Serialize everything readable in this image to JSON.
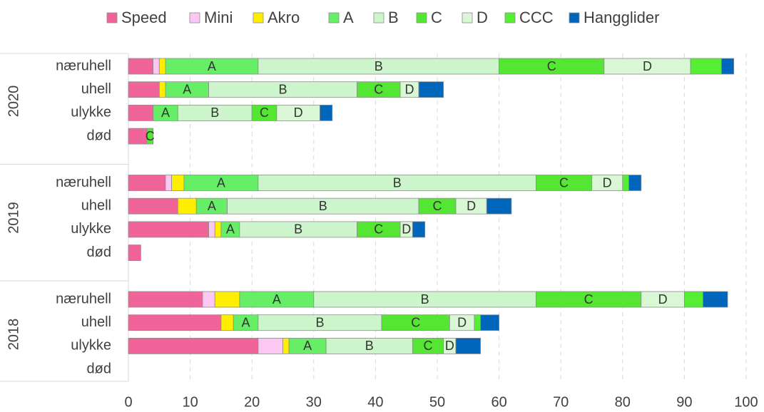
{
  "chart_data": {
    "type": "stacked-barh",
    "groups": [
      {
        "label": "2020",
        "categories": [
          "næruhell",
          "uhell",
          "ulykke",
          "død"
        ]
      },
      {
        "label": "2019",
        "categories": [
          "næruhell",
          "uhell",
          "ulykke",
          "død"
        ]
      },
      {
        "label": "2018",
        "categories": [
          "næruhell",
          "uhell",
          "ulykke",
          "død"
        ]
      }
    ],
    "series": [
      {
        "name": "Speed",
        "color": "#f0649a",
        "values": [
          4,
          5,
          4,
          3,
          6,
          8,
          13,
          2,
          12,
          15,
          21,
          0
        ]
      },
      {
        "name": "Mini",
        "color": "#fbc8f3",
        "values": [
          1,
          0,
          0,
          0,
          1,
          0,
          1,
          0,
          2,
          0,
          4,
          0
        ]
      },
      {
        "name": "Akro",
        "color": "#ffee00",
        "values": [
          1,
          1,
          0,
          0,
          2,
          3,
          1,
          0,
          4,
          2,
          1,
          0
        ]
      },
      {
        "name": "A",
        "color": "#66ee66",
        "values": [
          15,
          7,
          4,
          0,
          12,
          5,
          3,
          0,
          12,
          4,
          6,
          0
        ]
      },
      {
        "name": "B",
        "color": "#ccf5cc",
        "values": [
          39,
          24,
          12,
          0,
          45,
          31,
          19,
          0,
          36,
          20,
          14,
          0
        ]
      },
      {
        "name": "C",
        "color": "#55e533",
        "values": [
          17,
          7,
          4,
          1,
          9,
          6,
          7,
          0,
          17,
          11,
          5,
          0
        ]
      },
      {
        "name": "D",
        "color": "#d9f7d4",
        "values": [
          14,
          3,
          7,
          0,
          5,
          5,
          2,
          0,
          7,
          4,
          2,
          0
        ]
      },
      {
        "name": "CCC",
        "color": "#55ee33",
        "values": [
          5,
          0,
          0,
          0,
          1,
          0,
          0,
          0,
          3,
          1,
          0,
          0
        ]
      },
      {
        "name": "Hangglider",
        "color": "#0066bb",
        "values": [
          2,
          4,
          2,
          0,
          2,
          4,
          2,
          0,
          4,
          3,
          4,
          0
        ]
      }
    ],
    "xlim": [
      0,
      100
    ],
    "xticks": [
      0,
      10,
      20,
      30,
      40,
      50,
      60,
      70,
      80,
      90,
      100
    ],
    "grid": true,
    "legend": "top"
  }
}
